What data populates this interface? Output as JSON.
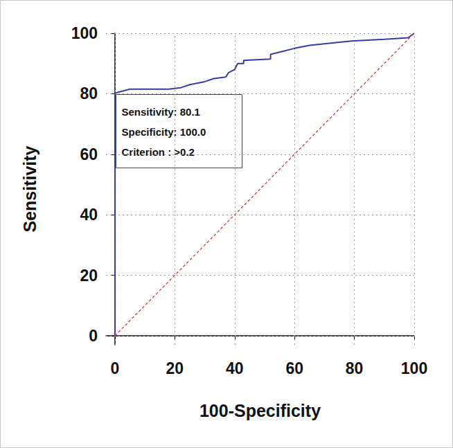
{
  "chart_data": {
    "type": "line",
    "x_label": "100-Specificity",
    "y_label": "Sensitivity",
    "xlim": [
      -3,
      100
    ],
    "ylim": [
      -3,
      100
    ],
    "xticks": [
      0,
      20,
      40,
      60,
      80,
      100
    ],
    "yticks": [
      0,
      20,
      40,
      60,
      80,
      100
    ],
    "grid": true,
    "annotation": [
      "Sensitivity: 80.1",
      "Specificity: 100.0",
      "Criterion : >0.2"
    ],
    "series": [
      {
        "color": "#3a3aa6",
        "line_style": "solid",
        "marker": "none",
        "x": [
          0,
          0,
          1,
          5,
          10,
          18,
          22,
          25,
          30,
          33,
          37,
          38,
          40,
          41,
          43,
          43,
          52,
          52,
          56,
          60,
          65,
          70,
          75,
          80,
          90,
          98,
          100
        ],
        "values": [
          0,
          80.1,
          80.5,
          81.5,
          81.5,
          81.5,
          82,
          83,
          84,
          85,
          85.5,
          87,
          88,
          90,
          90,
          91,
          91.5,
          93,
          94,
          95,
          96,
          96.5,
          97,
          97.5,
          98,
          98.5,
          100
        ]
      },
      {
        "color": "#cc3333",
        "line_style": "dashed",
        "marker": "none",
        "x": [
          0,
          100
        ],
        "values": [
          0,
          100
        ]
      }
    ]
  }
}
